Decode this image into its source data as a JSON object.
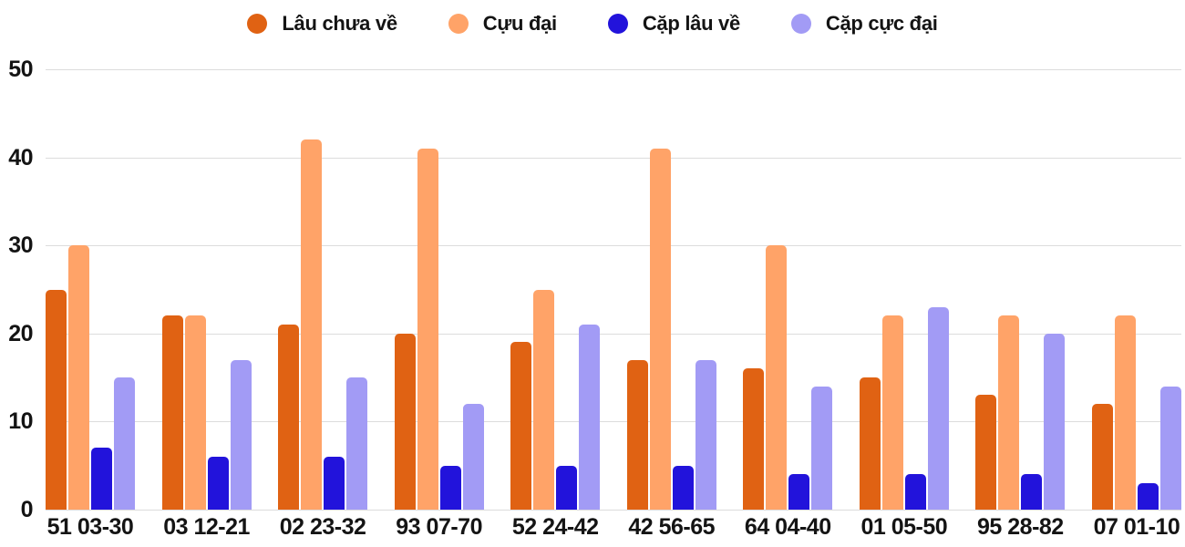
{
  "chart_data": {
    "type": "bar",
    "title": "",
    "xlabel": "",
    "ylabel": "",
    "categories": [
      "51 03-30",
      "03 12-21",
      "02 23-32",
      "93 07-70",
      "52 24-42",
      "42 56-65",
      "64 04-40",
      "01 05-50",
      "95 28-82",
      "07 01-10"
    ],
    "series": [
      {
        "name": "Lâu chưa về",
        "color": "#E06213",
        "values": [
          25,
          22,
          21,
          20,
          19,
          17,
          16,
          15,
          13,
          12
        ]
      },
      {
        "name": "Cựu đại",
        "color": "#FFA368",
        "values": [
          30,
          22,
          42,
          41,
          25,
          41,
          30,
          22,
          22,
          22
        ]
      },
      {
        "name": "Cặp lâu về",
        "color": "#2213DB",
        "values": [
          7,
          6,
          6,
          5,
          5,
          5,
          4,
          4,
          4,
          3
        ]
      },
      {
        "name": "Cặp cực đại",
        "color": "#A29BF5",
        "values": [
          15,
          17,
          15,
          12,
          21,
          17,
          14,
          23,
          20,
          14
        ]
      }
    ],
    "ylim": [
      0,
      50
    ],
    "yticks": [
      0,
      10,
      20,
      30,
      40,
      50
    ],
    "grid": true,
    "legend_position": "top"
  },
  "colors": {
    "background": "#FFFFFF",
    "grid": "#DCDCDC",
    "text": "#141414"
  }
}
